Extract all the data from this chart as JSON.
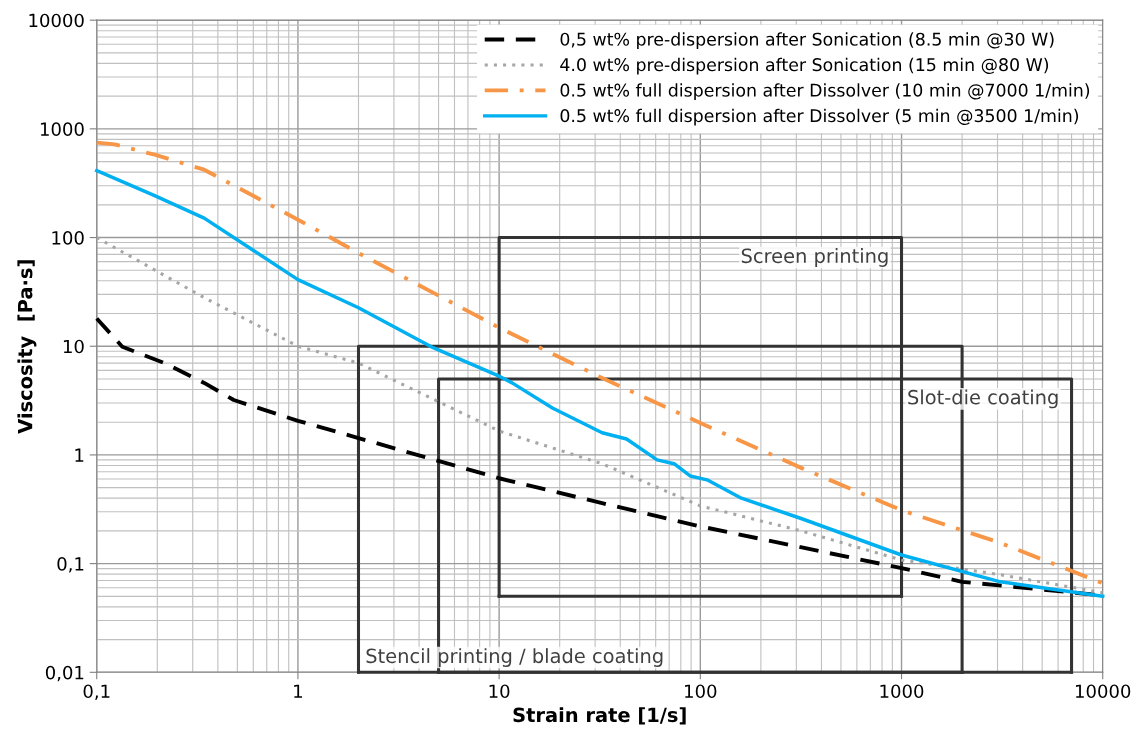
{
  "chart_data": {
    "type": "line",
    "xlabel": "Strain rate [1/s]",
    "ylabel": "Viscosity  [Pa·s]",
    "log": "xy",
    "grid": true,
    "legend": "top right",
    "xlim": [
      0.1,
      10000
    ],
    "ylim": [
      0.01,
      10000
    ],
    "xticks": [
      {
        "value": 0.1,
        "label": "0,1"
      },
      1,
      10,
      100,
      1000,
      10000
    ],
    "yticks": [
      {
        "value": 0.01,
        "label": "0,01"
      },
      {
        "value": 0.1,
        "label": "0,1"
      },
      1,
      10,
      100,
      1000,
      10000
    ],
    "series": [
      {
        "name": "0,5 wt% pre-dispersion after Sonication (8.5 min @30 W)",
        "color": "#000000",
        "line_style": "dashed",
        "x": [
          0.1,
          0.134,
          0.217,
          0.342,
          0.48,
          1,
          2,
          10,
          32.5,
          100,
          1000,
          2000,
          10000
        ],
        "values": [
          18,
          9.9,
          7.0,
          4.6,
          3.2,
          2.06,
          1.43,
          0.61,
          0.36,
          0.22,
          0.091,
          0.068,
          0.051
        ]
      },
      {
        "name": "4.0 wt% pre-dispersion after Sonication (15 min @80 W)",
        "color": "#a6a6a6",
        "line_style": "dotted",
        "x": [
          0.1,
          0.342,
          1,
          2,
          10,
          32.5,
          100,
          317,
          1000,
          3100,
          10000
        ],
        "values": [
          100,
          28,
          10,
          7.0,
          1.66,
          0.83,
          0.34,
          0.2,
          0.108,
          0.079,
          0.054
        ]
      },
      {
        "name": "0.5 wt% full dispersion after Dissolver (10 min @7000 1/min)",
        "color": "#f79646",
        "line_style": "dashdot",
        "x": [
          0.1,
          0.123,
          0.194,
          0.342,
          1,
          2,
          10,
          32.5,
          100,
          317,
          1000,
          3100,
          10000
        ],
        "values": [
          747,
          720,
          578,
          421,
          146,
          72,
          14.8,
          5.1,
          1.97,
          0.76,
          0.31,
          0.155,
          0.066
        ]
      },
      {
        "name": "0.5 wt% full dispersion after Dissolver (5 min @3500 1/min)",
        "color": "#00b0f0",
        "line_style": "solid",
        "x": [
          0.1,
          0.194,
          0.342,
          1,
          2,
          4.7,
          10,
          11.6,
          18.4,
          32.5,
          43,
          61,
          74,
          89,
          108,
          160,
          317,
          1000,
          3100,
          10000
        ],
        "values": [
          412,
          243,
          151,
          41,
          22.6,
          9.7,
          5.3,
          4.6,
          2.7,
          1.6,
          1.4,
          0.9,
          0.83,
          0.64,
          0.59,
          0.4,
          0.26,
          0.12,
          0.068,
          0.05
        ]
      },
      {
        "name": "Screen printing",
        "color": "#333333",
        "line_style": "solid",
        "x": [
          10,
          10,
          1000,
          1000
        ],
        "values": [
          0.05,
          100,
          100,
          0.05
        ]
      },
      {
        "name": "Stencil printing / blade coating",
        "color": "#333333",
        "line_style": "solid",
        "x": [
          2,
          2,
          2000,
          2000
        ],
        "values": [
          0.01,
          10,
          10,
          0.01
        ]
      },
      {
        "name": "Slot-die coating",
        "color": "#333333",
        "line_style": "solid",
        "x": [
          5,
          5,
          7000,
          7000
        ],
        "values": [
          0.01,
          5,
          5,
          0.01
        ]
      },
      {
        "color": "#333333",
        "line_style": "solid",
        "x": [
          10,
          1000
        ],
        "values": [
          0.05,
          0.05
        ]
      },
      {
        "color": "#333333",
        "line_style": "solid",
        "x": [
          2,
          2000
        ],
        "values": [
          0.01,
          0.01
        ]
      },
      {
        "color": "#333333",
        "line_style": "solid",
        "x": [
          5,
          7000
        ],
        "values": [
          0.01,
          0.01
        ]
      }
    ]
  }
}
